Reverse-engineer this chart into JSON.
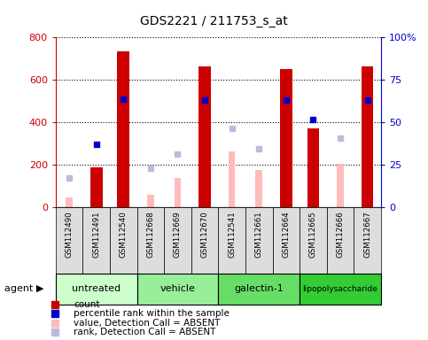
{
  "title": "GDS2221 / 211753_s_at",
  "samples": [
    "GSM112490",
    "GSM112491",
    "GSM112540",
    "GSM112668",
    "GSM112669",
    "GSM112670",
    "GSM112541",
    "GSM112661",
    "GSM112664",
    "GSM112665",
    "GSM112666",
    "GSM112667"
  ],
  "groups": [
    {
      "label": "untreated",
      "color": "#ccffcc",
      "span": [
        0,
        3
      ]
    },
    {
      "label": "vehicle",
      "color": "#99ee99",
      "span": [
        3,
        6
      ]
    },
    {
      "label": "galectin-1",
      "color": "#66dd66",
      "span": [
        6,
        9
      ]
    },
    {
      "label": "lipopolysaccharide",
      "color": "#33cc33",
      "span": [
        9,
        12
      ]
    }
  ],
  "count": [
    null,
    190,
    735,
    null,
    null,
    665,
    null,
    null,
    650,
    370,
    null,
    665
  ],
  "percentile_rank": [
    null,
    295,
    510,
    null,
    null,
    505,
    null,
    null,
    505,
    415,
    null,
    505
  ],
  "value_absent": [
    45,
    null,
    null,
    60,
    140,
    null,
    265,
    175,
    null,
    null,
    205,
    null
  ],
  "rank_absent": [
    140,
    null,
    null,
    185,
    250,
    null,
    370,
    275,
    null,
    null,
    325,
    null
  ],
  "ylim": [
    0,
    800
  ],
  "yticks_left": [
    0,
    200,
    400,
    600,
    800
  ],
  "yticks_right": [
    0,
    25,
    50,
    75,
    100
  ],
  "count_color": "#cc0000",
  "percentile_color": "#0000cc",
  "value_absent_color": "#ffbbbb",
  "rank_absent_color": "#bbbbdd",
  "tick_area_color": "#dddddd",
  "legend_items": [
    {
      "color": "#cc0000",
      "label": "count"
    },
    {
      "color": "#0000cc",
      "label": "percentile rank within the sample"
    },
    {
      "color": "#ffbbbb",
      "label": "value, Detection Call = ABSENT"
    },
    {
      "color": "#bbbbdd",
      "label": "rank, Detection Call = ABSENT"
    }
  ]
}
